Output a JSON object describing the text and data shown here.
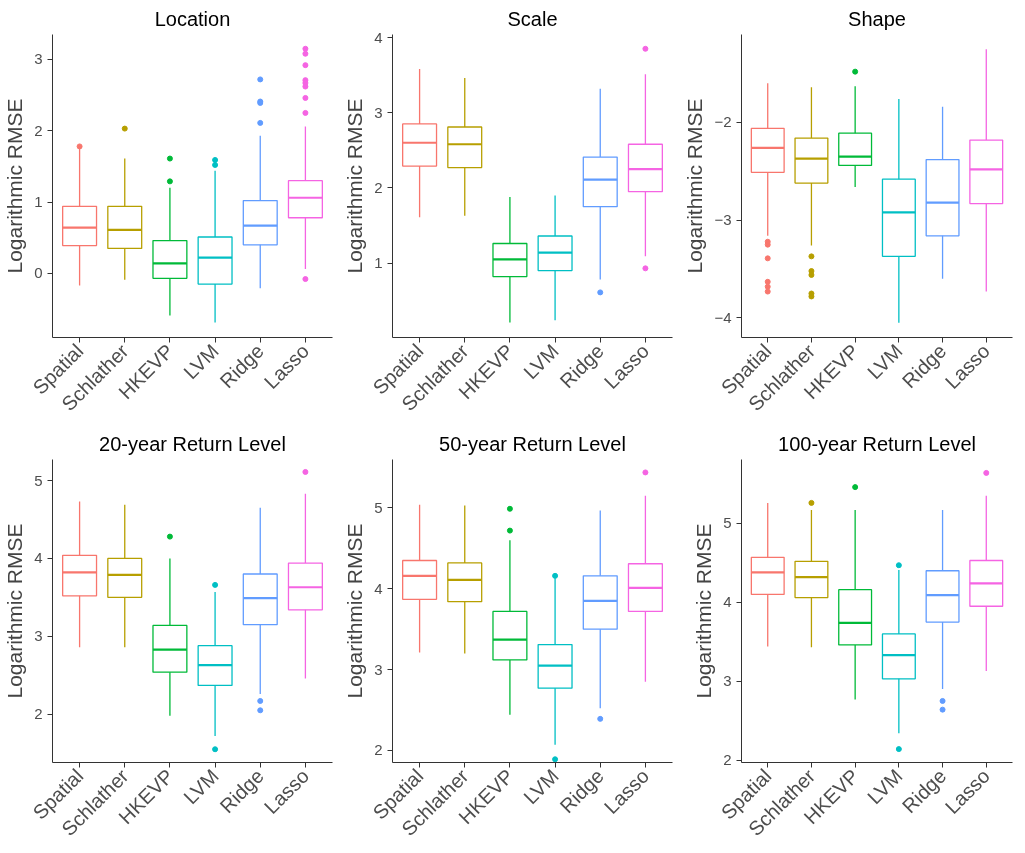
{
  "chart_data": [
    {
      "type": "box",
      "title": "Location",
      "ylabel": "Logarithmic RMSE",
      "categories": [
        "Spatial",
        "Schlather",
        "HKEVP",
        "LVM",
        "Ridge",
        "Lasso"
      ],
      "colors": [
        "#f8766d",
        "#b79f00",
        "#00ba38",
        "#00bfc4",
        "#619cff",
        "#f564e3"
      ],
      "ylim": [
        -0.9,
        3.35
      ],
      "yticks": [
        0,
        1,
        2,
        3
      ],
      "grid": false,
      "boxes": [
        {
          "low": -0.17,
          "q1": 0.39,
          "median": 0.64,
          "q3": 0.94,
          "high": 1.75,
          "outliers": [
            1.78
          ]
        },
        {
          "low": -0.09,
          "q1": 0.35,
          "median": 0.61,
          "q3": 0.94,
          "high": 1.61,
          "outliers": [
            2.03
          ]
        },
        {
          "low": -0.59,
          "q1": -0.07,
          "median": 0.14,
          "q3": 0.46,
          "high": 1.2,
          "outliers": [
            1.61,
            1.29
          ]
        },
        {
          "low": -0.69,
          "q1": -0.15,
          "median": 0.22,
          "q3": 0.51,
          "high": 1.44,
          "outliers": [
            1.59,
            1.52
          ]
        },
        {
          "low": -0.21,
          "q1": 0.4,
          "median": 0.67,
          "q3": 1.02,
          "high": 1.93,
          "outliers": [
            2.72,
            2.41,
            2.39,
            2.11
          ]
        },
        {
          "low": 0.06,
          "q1": 0.78,
          "median": 1.06,
          "q3": 1.3,
          "high": 2.06,
          "outliers": [
            3.15,
            3.08,
            2.92,
            2.71,
            2.67,
            2.62,
            2.46,
            2.25,
            -0.08
          ]
        }
      ]
    },
    {
      "type": "box",
      "title": "Scale",
      "ylabel": "Logarithmic RMSE",
      "categories": [
        "Spatial",
        "Schlather",
        "HKEVP",
        "LVM",
        "Ridge",
        "Lasso"
      ],
      "colors": [
        "#f8766d",
        "#b79f00",
        "#00ba38",
        "#00bfc4",
        "#619cff",
        "#f564e3"
      ],
      "ylim": [
        0.01,
        4.04
      ],
      "yticks": [
        1,
        2,
        3,
        4
      ],
      "grid": false,
      "boxes": [
        {
          "low": 1.61,
          "q1": 2.29,
          "median": 2.6,
          "q3": 2.85,
          "high": 3.58
        },
        {
          "low": 1.63,
          "q1": 2.27,
          "median": 2.58,
          "q3": 2.81,
          "high": 3.46
        },
        {
          "low": 0.21,
          "q1": 0.82,
          "median": 1.05,
          "q3": 1.26,
          "high": 1.88
        },
        {
          "low": 0.24,
          "q1": 0.9,
          "median": 1.14,
          "q3": 1.36,
          "high": 1.9
        },
        {
          "low": 0.78,
          "q1": 1.75,
          "median": 2.11,
          "q3": 2.41,
          "high": 3.32,
          "outliers": [
            0.61
          ]
        },
        {
          "low": 1.09,
          "q1": 1.95,
          "median": 2.25,
          "q3": 2.58,
          "high": 3.51,
          "outliers": [
            3.85,
            0.93
          ]
        }
      ]
    },
    {
      "type": "box",
      "title": "Shape",
      "ylabel": "Logarithmic RMSE",
      "categories": [
        "Spatial",
        "Schlather",
        "HKEVP",
        "LVM",
        "Ridge",
        "Lasso"
      ],
      "colors": [
        "#f8766d",
        "#b79f00",
        "#00ba38",
        "#00bfc4",
        "#619cff",
        "#f564e3"
      ],
      "ylim": [
        -4.2,
        -1.1
      ],
      "yticks": [
        -4,
        -3,
        -2
      ],
      "grid": false,
      "boxes": [
        {
          "low": -3.16,
          "q1": -2.51,
          "median": -2.26,
          "q3": -2.06,
          "high": -1.6,
          "outliers": [
            -3.22,
            -3.25,
            -3.39,
            -3.63,
            -3.68,
            -3.73
          ]
        },
        {
          "low": -3.26,
          "q1": -2.62,
          "median": -2.37,
          "q3": -2.16,
          "high": -1.64,
          "outliers": [
            -3.37,
            -3.52,
            -3.56,
            -3.75,
            -3.78
          ]
        },
        {
          "low": -2.66,
          "q1": -2.44,
          "median": -2.35,
          "q3": -2.11,
          "high": -1.63,
          "outliers": [
            -1.48
          ]
        },
        {
          "low": -4.05,
          "q1": -3.37,
          "median": -2.92,
          "q3": -2.58,
          "high": -1.76
        },
        {
          "low": -3.6,
          "q1": -3.16,
          "median": -2.82,
          "q3": -2.38,
          "high": -1.84
        },
        {
          "low": -3.73,
          "q1": -2.83,
          "median": -2.48,
          "q3": -2.18,
          "high": -1.25
        }
      ]
    },
    {
      "type": "box",
      "title": "20-year Return Level",
      "ylabel": "Logarithmic RMSE",
      "categories": [
        "Spatial",
        "Schlather",
        "HKEVP",
        "LVM",
        "Ridge",
        "Lasso"
      ],
      "colors": [
        "#f8766d",
        "#b79f00",
        "#00ba38",
        "#00bfc4",
        "#619cff",
        "#f564e3"
      ],
      "ylim": [
        1.38,
        5.27
      ],
      "yticks": [
        2,
        3,
        4,
        5
      ],
      "grid": false,
      "boxes": [
        {
          "low": 2.86,
          "q1": 3.52,
          "median": 3.82,
          "q3": 4.04,
          "high": 4.73
        },
        {
          "low": 2.86,
          "q1": 3.5,
          "median": 3.79,
          "q3": 4.0,
          "high": 4.69
        },
        {
          "low": 1.98,
          "q1": 2.54,
          "median": 2.83,
          "q3": 3.14,
          "high": 4.0,
          "outliers": [
            4.28
          ]
        },
        {
          "low": 1.72,
          "q1": 2.37,
          "median": 2.63,
          "q3": 2.88,
          "high": 3.57,
          "outliers": [
            3.66,
            1.55
          ]
        },
        {
          "low": 2.26,
          "q1": 3.15,
          "median": 3.49,
          "q3": 3.8,
          "high": 4.65,
          "outliers": [
            2.17,
            2.05
          ]
        },
        {
          "low": 2.46,
          "q1": 3.34,
          "median": 3.63,
          "q3": 3.94,
          "high": 4.83,
          "outliers": [
            5.11
          ]
        }
      ]
    },
    {
      "type": "box",
      "title": "50-year Return Level",
      "ylabel": "Logarithmic RMSE",
      "categories": [
        "Spatial",
        "Schlather",
        "HKEVP",
        "LVM",
        "Ridge",
        "Lasso"
      ],
      "colors": [
        "#f8766d",
        "#b79f00",
        "#00ba38",
        "#00bfc4",
        "#619cff",
        "#f564e3"
      ],
      "ylim": [
        1.85,
        5.6
      ],
      "yticks": [
        2,
        3,
        4,
        5
      ],
      "grid": false,
      "boxes": [
        {
          "low": 3.21,
          "q1": 3.87,
          "median": 4.16,
          "q3": 4.35,
          "high": 5.04
        },
        {
          "low": 3.2,
          "q1": 3.84,
          "median": 4.11,
          "q3": 4.32,
          "high": 5.03
        },
        {
          "low": 2.44,
          "q1": 3.12,
          "median": 3.37,
          "q3": 3.72,
          "high": 4.6,
          "outliers": [
            4.99,
            4.72
          ]
        },
        {
          "low": 2.07,
          "q1": 2.77,
          "median": 3.05,
          "q3": 3.31,
          "high": 4.13,
          "outliers": [
            4.16,
            1.89
          ]
        },
        {
          "low": 2.52,
          "q1": 3.5,
          "median": 3.85,
          "q3": 4.16,
          "high": 4.97,
          "outliers": [
            2.39
          ]
        },
        {
          "low": 2.85,
          "q1": 3.72,
          "median": 4.01,
          "q3": 4.31,
          "high": 5.15,
          "outliers": [
            5.44
          ]
        }
      ]
    },
    {
      "type": "box",
      "title": "100-year Return Level",
      "ylabel": "Logarithmic RMSE",
      "categories": [
        "Spatial",
        "Schlather",
        "HKEVP",
        "LVM",
        "Ridge",
        "Lasso"
      ],
      "colors": [
        "#f8766d",
        "#b79f00",
        "#00ba38",
        "#00bfc4",
        "#619cff",
        "#f564e3"
      ],
      "ylim": [
        1.97,
        5.81
      ],
      "yticks": [
        2,
        3,
        4,
        5
      ],
      "grid": false,
      "boxes": [
        {
          "low": 3.44,
          "q1": 4.1,
          "median": 4.38,
          "q3": 4.57,
          "high": 5.26
        },
        {
          "low": 3.43,
          "q1": 4.06,
          "median": 4.32,
          "q3": 4.52,
          "high": 5.17,
          "outliers": [
            5.26
          ]
        },
        {
          "low": 2.77,
          "q1": 3.46,
          "median": 3.74,
          "q3": 4.16,
          "high": 5.17,
          "outliers": [
            5.46
          ]
        },
        {
          "low": 2.34,
          "q1": 3.03,
          "median": 3.33,
          "q3": 3.6,
          "high": 4.41,
          "outliers": [
            4.47,
            2.14
          ]
        },
        {
          "low": 2.9,
          "q1": 3.75,
          "median": 4.09,
          "q3": 4.4,
          "high": 5.17,
          "outliers": [
            2.75,
            2.64
          ]
        },
        {
          "low": 3.13,
          "q1": 3.95,
          "median": 4.24,
          "q3": 4.53,
          "high": 5.35,
          "outliers": [
            5.64
          ]
        }
      ]
    }
  ]
}
